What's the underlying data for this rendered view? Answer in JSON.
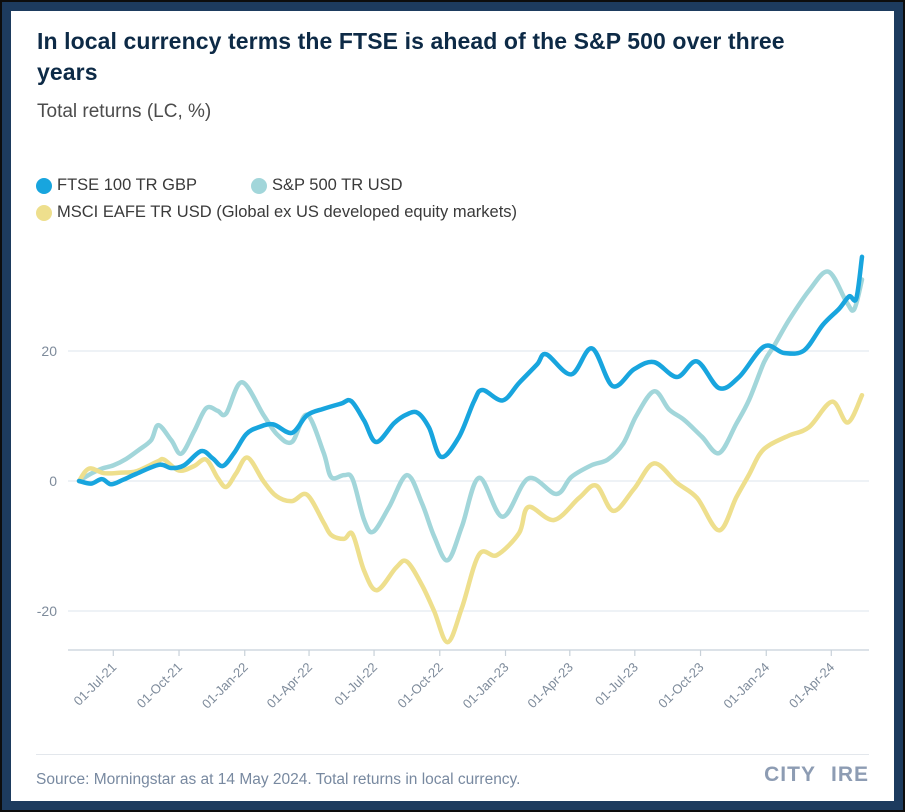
{
  "header": {
    "title": "In local currency terms the FTSE is ahead of the S&P 500 over three years",
    "subtitle": "Total returns (LC, %)"
  },
  "legend": {
    "items": [
      {
        "label": "FTSE 100 TR GBP"
      },
      {
        "label": "S&P 500 TR USD"
      },
      {
        "label": "MSCI EAFE TR USD (Global ex US developed equity markets)"
      }
    ]
  },
  "footer": {
    "source": "Source: Morningstar as at 14 May 2024. Total returns in local currency.",
    "logo": {
      "left": "CITY",
      "right": "IRE"
    }
  },
  "colors": {
    "frame_navy": "#1d3b5e",
    "title_navy": "#0d2a46",
    "grid": "#dee6ed",
    "axis": "#c8d1d9",
    "axis_label": "#7e8b9b",
    "ftse_blue": "#18a5de",
    "sp500_teal": "#a2d6da",
    "eafe_yellow": "#eedf8d"
  },
  "chart_data": {
    "type": "line",
    "title": "In local currency terms the FTSE is ahead of the S&P 500 over three years",
    "subtitle": "Total returns (LC, %)",
    "xlabel": "",
    "ylabel": "Total returns (LC, %)",
    "grid": true,
    "legend_position": "top-left",
    "x_axis": {
      "start_date": "2021-05-14",
      "end_date": "2024-05-14",
      "ticks": [
        {
          "date": "2021-07-01",
          "label": "01-Jul-21"
        },
        {
          "date": "2021-10-01",
          "label": "01-Oct-21"
        },
        {
          "date": "2022-01-01",
          "label": "01-Jan-22"
        },
        {
          "date": "2022-04-01",
          "label": "01-Apr-22"
        },
        {
          "date": "2022-07-01",
          "label": "01-Jul-22"
        },
        {
          "date": "2022-10-01",
          "label": "01-Oct-22"
        },
        {
          "date": "2023-01-01",
          "label": "01-Jan-23"
        },
        {
          "date": "2023-04-01",
          "label": "01-Apr-23"
        },
        {
          "date": "2023-07-01",
          "label": "01-Jul-23"
        },
        {
          "date": "2023-10-01",
          "label": "01-Oct-23"
        },
        {
          "date": "2024-01-01",
          "label": "01-Jan-24"
        },
        {
          "date": "2024-04-01",
          "label": "01-Apr-24"
        }
      ]
    },
    "y_axis": {
      "min": -26,
      "max": 35,
      "ticks": [
        {
          "value": 20,
          "label": "20"
        },
        {
          "value": 0,
          "label": "0"
        },
        {
          "value": -20,
          "label": "-20"
        }
      ]
    },
    "series": [
      {
        "name": "S&P 500 TR USD",
        "color": "#a2d6da",
        "stroke_width": 4.5,
        "points": [
          [
            "2021-05-14",
            0
          ],
          [
            "2021-06-01",
            1.2
          ],
          [
            "2021-06-15",
            1.9
          ],
          [
            "2021-07-01",
            2.4
          ],
          [
            "2021-07-19",
            3.4
          ],
          [
            "2021-08-06",
            4.8
          ],
          [
            "2021-08-23",
            6.3
          ],
          [
            "2021-09-02",
            8.6
          ],
          [
            "2021-09-20",
            6.3
          ],
          [
            "2021-10-04",
            4.2
          ],
          [
            "2021-10-22",
            7.6
          ],
          [
            "2021-11-08",
            11.2
          ],
          [
            "2021-11-24",
            10.8
          ],
          [
            "2021-12-06",
            10.4
          ],
          [
            "2021-12-28",
            15.2
          ],
          [
            "2022-01-27",
            10.2
          ],
          [
            "2022-02-15",
            7.2
          ],
          [
            "2022-03-08",
            6.0
          ],
          [
            "2022-03-29",
            10.2
          ],
          [
            "2022-04-21",
            4.5
          ],
          [
            "2022-05-02",
            0.6
          ],
          [
            "2022-05-20",
            0.9
          ],
          [
            "2022-06-01",
            0.3
          ],
          [
            "2022-06-17",
            -6.0
          ],
          [
            "2022-06-30",
            -7.8
          ],
          [
            "2022-07-22",
            -4.0
          ],
          [
            "2022-08-16",
            0.9
          ],
          [
            "2022-09-06",
            -3.4
          ],
          [
            "2022-09-23",
            -8.5
          ],
          [
            "2022-10-12",
            -12.2
          ],
          [
            "2022-11-01",
            -7.0
          ],
          [
            "2022-11-25",
            0.5
          ],
          [
            "2022-12-28",
            -5.5
          ],
          [
            "2023-02-02",
            0.4
          ],
          [
            "2023-03-13",
            -2.0
          ],
          [
            "2023-04-03",
            0.6
          ],
          [
            "2023-05-01",
            2.4
          ],
          [
            "2023-05-24",
            3.3
          ],
          [
            "2023-06-15",
            5.8
          ],
          [
            "2023-07-03",
            10.0
          ],
          [
            "2023-07-28",
            13.8
          ],
          [
            "2023-08-18",
            11.0
          ],
          [
            "2023-09-08",
            9.4
          ],
          [
            "2023-10-03",
            6.8
          ],
          [
            "2023-10-27",
            4.3
          ],
          [
            "2023-11-20",
            8.8
          ],
          [
            "2023-12-08",
            12.5
          ],
          [
            "2023-12-29",
            18.3
          ],
          [
            "2024-01-12",
            20.8
          ],
          [
            "2024-02-02",
            24.8
          ],
          [
            "2024-03-01",
            29.3
          ],
          [
            "2024-03-28",
            32.2
          ],
          [
            "2024-04-22",
            27.6
          ],
          [
            "2024-05-03",
            26.4
          ],
          [
            "2024-05-14",
            31.0
          ]
        ]
      },
      {
        "name": "MSCI EAFE TR USD (Global ex US developed equity markets)",
        "color": "#eedf8d",
        "stroke_width": 4.5,
        "points": [
          [
            "2021-05-14",
            0
          ],
          [
            "2021-05-28",
            1.9
          ],
          [
            "2021-06-18",
            1.2
          ],
          [
            "2021-07-12",
            1.3
          ],
          [
            "2021-08-02",
            1.5
          ],
          [
            "2021-09-01",
            3.0
          ],
          [
            "2021-09-10",
            3.3
          ],
          [
            "2021-10-01",
            1.6
          ],
          [
            "2021-10-22",
            2.3
          ],
          [
            "2021-11-08",
            3.3
          ],
          [
            "2021-11-24",
            0.5
          ],
          [
            "2021-12-06",
            -0.9
          ],
          [
            "2021-12-20",
            1.2
          ],
          [
            "2022-01-05",
            3.6
          ],
          [
            "2022-01-27",
            0.0
          ],
          [
            "2022-02-14",
            -2.3
          ],
          [
            "2022-03-08",
            -3.1
          ],
          [
            "2022-03-29",
            -2.1
          ],
          [
            "2022-04-21",
            -6.3
          ],
          [
            "2022-05-02",
            -8.3
          ],
          [
            "2022-05-20",
            -8.9
          ],
          [
            "2022-06-01",
            -8.2
          ],
          [
            "2022-06-17",
            -13.8
          ],
          [
            "2022-07-05",
            -16.8
          ],
          [
            "2022-08-01",
            -13.3
          ],
          [
            "2022-08-16",
            -12.4
          ],
          [
            "2022-09-06",
            -16.0
          ],
          [
            "2022-09-23",
            -20.0
          ],
          [
            "2022-10-12",
            -24.8
          ],
          [
            "2022-11-01",
            -19.5
          ],
          [
            "2022-11-25",
            -11.3
          ],
          [
            "2022-12-20",
            -11.4
          ],
          [
            "2023-01-20",
            -8.0
          ],
          [
            "2023-02-02",
            -4.0
          ],
          [
            "2023-03-10",
            -6.0
          ],
          [
            "2023-04-14",
            -2.6
          ],
          [
            "2023-05-08",
            -0.7
          ],
          [
            "2023-06-01",
            -4.6
          ],
          [
            "2023-06-30",
            -1.2
          ],
          [
            "2023-07-28",
            2.7
          ],
          [
            "2023-08-29",
            -0.3
          ],
          [
            "2023-09-26",
            -2.6
          ],
          [
            "2023-10-27",
            -7.6
          ],
          [
            "2023-11-20",
            -2.5
          ],
          [
            "2023-12-08",
            1.0
          ],
          [
            "2023-12-22",
            4.0
          ],
          [
            "2024-01-05",
            5.5
          ],
          [
            "2024-02-02",
            7.0
          ],
          [
            "2024-03-01",
            8.3
          ],
          [
            "2024-04-02",
            12.2
          ],
          [
            "2024-04-24",
            9.0
          ],
          [
            "2024-05-14",
            13.2
          ]
        ]
      },
      {
        "name": "FTSE 100 TR GBP",
        "color": "#18a5de",
        "stroke_width": 4.5,
        "points": [
          [
            "2021-05-14",
            0
          ],
          [
            "2021-05-31",
            -0.4
          ],
          [
            "2021-06-15",
            0.3
          ],
          [
            "2021-06-28",
            -0.5
          ],
          [
            "2021-07-15",
            0.2
          ],
          [
            "2021-08-02",
            1.1
          ],
          [
            "2021-09-03",
            2.5
          ],
          [
            "2021-09-20",
            2.0
          ],
          [
            "2021-10-08",
            2.4
          ],
          [
            "2021-11-01",
            4.6
          ],
          [
            "2021-11-17",
            3.5
          ],
          [
            "2021-12-01",
            2.3
          ],
          [
            "2021-12-17",
            4.3
          ],
          [
            "2022-01-03",
            7.2
          ],
          [
            "2022-01-21",
            8.3
          ],
          [
            "2022-02-10",
            8.7
          ],
          [
            "2022-03-08",
            7.4
          ],
          [
            "2022-03-29",
            10.1
          ],
          [
            "2022-04-21",
            11.1
          ],
          [
            "2022-05-16",
            11.9
          ],
          [
            "2022-05-30",
            12.3
          ],
          [
            "2022-06-17",
            9.3
          ],
          [
            "2022-07-04",
            6.0
          ],
          [
            "2022-07-29",
            8.9
          ],
          [
            "2022-08-15",
            10.2
          ],
          [
            "2022-08-31",
            10.5
          ],
          [
            "2022-09-16",
            8.2
          ],
          [
            "2022-10-03",
            3.7
          ],
          [
            "2022-10-28",
            6.8
          ],
          [
            "2022-11-18",
            12.3
          ],
          [
            "2022-11-30",
            14.0
          ],
          [
            "2022-12-28",
            12.4
          ],
          [
            "2023-01-20",
            15.1
          ],
          [
            "2023-02-14",
            17.9
          ],
          [
            "2023-02-27",
            19.5
          ],
          [
            "2023-04-03",
            16.4
          ],
          [
            "2023-05-02",
            20.4
          ],
          [
            "2023-05-31",
            14.6
          ],
          [
            "2023-06-30",
            17.2
          ],
          [
            "2023-07-28",
            18.3
          ],
          [
            "2023-08-29",
            16.0
          ],
          [
            "2023-09-26",
            18.4
          ],
          [
            "2023-10-27",
            14.3
          ],
          [
            "2023-11-24",
            16.0
          ],
          [
            "2023-12-29",
            20.7
          ],
          [
            "2024-01-26",
            19.7
          ],
          [
            "2024-02-23",
            20.1
          ],
          [
            "2024-03-20",
            24.0
          ],
          [
            "2024-04-12",
            26.5
          ],
          [
            "2024-04-26",
            28.4
          ],
          [
            "2024-05-06",
            28.1
          ],
          [
            "2024-05-14",
            34.5
          ]
        ]
      }
    ]
  }
}
